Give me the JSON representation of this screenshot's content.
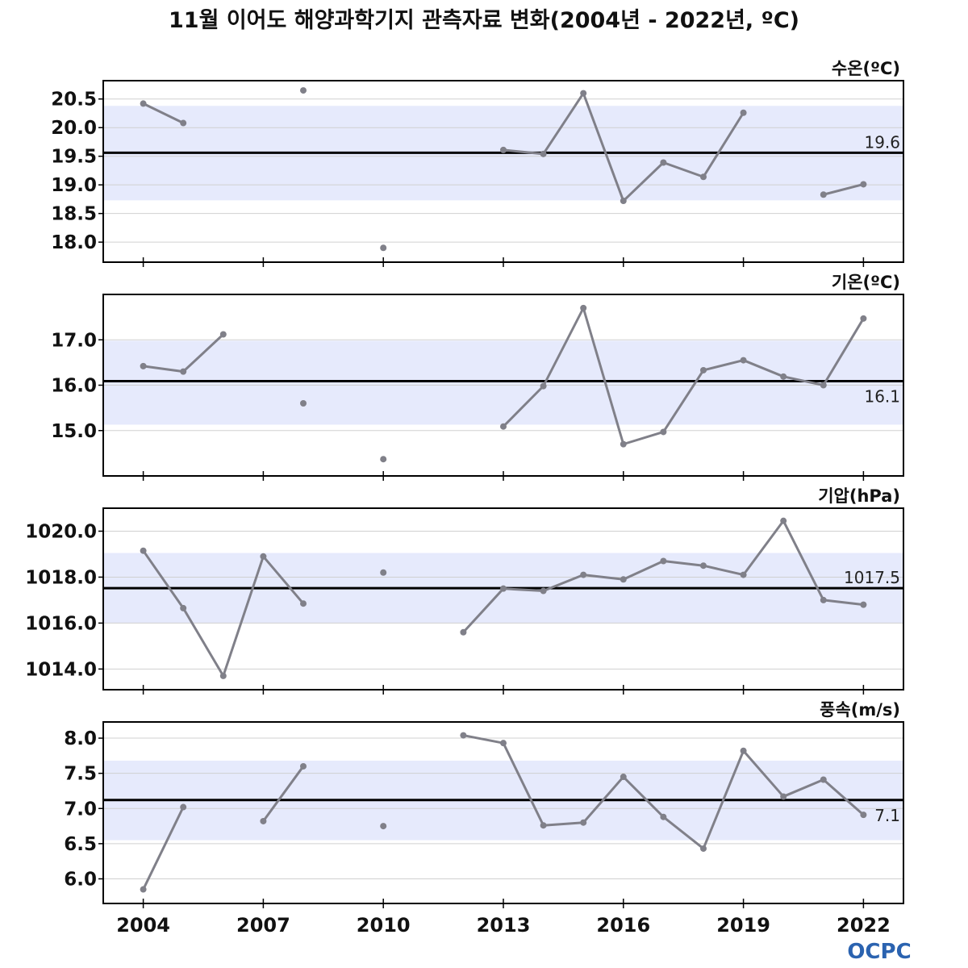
{
  "title": "11월 이어도 해양과학기지 관측자료 변화(2004년 - 2022년, ºC)",
  "logo": "OCPC",
  "colors": {
    "line": "#808089",
    "band": "#e6eafc",
    "mean_line": "#000000",
    "grid": "#d0d0d0",
    "frame": "#000000",
    "logo": "#2b63b0"
  },
  "chart_data": [
    {
      "type": "line",
      "label": "수온(ºC)",
      "x": [
        2004,
        2005,
        2006,
        2007,
        2008,
        2009,
        2010,
        2011,
        2012,
        2013,
        2014,
        2015,
        2016,
        2017,
        2018,
        2019,
        2020,
        2021,
        2022
      ],
      "values": [
        20.42,
        20.08,
        null,
        null,
        20.65,
        null,
        17.9,
        null,
        null,
        19.61,
        19.54,
        20.6,
        18.72,
        19.39,
        19.14,
        20.26,
        null,
        18.83,
        19.01
      ],
      "mean": 19.56,
      "mean_label": "19.6",
      "band": [
        18.73,
        20.38
      ],
      "ylim": [
        17.65,
        20.82
      ],
      "yticks": [
        18.0,
        18.5,
        19.0,
        19.5,
        20.0,
        20.5
      ],
      "ytick_labels": [
        "18.0",
        "18.5",
        "19.0",
        "19.5",
        "20.0",
        "20.5"
      ],
      "mean_label_pos": "above"
    },
    {
      "type": "line",
      "label": "기온(ºC)",
      "x": [
        2004,
        2005,
        2006,
        2007,
        2008,
        2009,
        2010,
        2011,
        2012,
        2013,
        2014,
        2015,
        2016,
        2017,
        2018,
        2019,
        2020,
        2021,
        2022
      ],
      "values": [
        16.42,
        16.3,
        17.12,
        null,
        15.6,
        null,
        14.37,
        null,
        null,
        15.09,
        15.98,
        17.7,
        14.7,
        14.97,
        16.33,
        16.55,
        16.19,
        16.0,
        17.47
      ],
      "mean": 16.09,
      "mean_label": "16.1",
      "band": [
        15.13,
        16.98
      ],
      "ylim": [
        14.0,
        18.0
      ],
      "yticks": [
        15.0,
        16.0,
        17.0
      ],
      "ytick_labels": [
        "15.0",
        "16.0",
        "17.0"
      ],
      "mean_label_pos": "below"
    },
    {
      "type": "line",
      "label": "기압(hPa)",
      "x": [
        2004,
        2005,
        2006,
        2007,
        2008,
        2009,
        2010,
        2011,
        2012,
        2013,
        2014,
        2015,
        2016,
        2017,
        2018,
        2019,
        2020,
        2021,
        2022
      ],
      "values": [
        1019.15,
        1016.65,
        1013.7,
        1018.9,
        1016.85,
        null,
        1018.2,
        null,
        1015.6,
        1017.5,
        1017.4,
        1018.1,
        1017.9,
        1018.7,
        1018.5,
        1018.1,
        1020.45,
        1017.0,
        1016.8
      ],
      "mean": 1017.52,
      "mean_label": "1017.5",
      "band": [
        1016.0,
        1019.05
      ],
      "ylim": [
        1013.1,
        1021.0
      ],
      "yticks": [
        1014.0,
        1016.0,
        1018.0,
        1020.0
      ],
      "ytick_labels": [
        "1014.0",
        "1016.0",
        "1018.0",
        "1020.0"
      ],
      "mean_label_pos": "above"
    },
    {
      "type": "line",
      "label": "풍속(m/s)",
      "x": [
        2004,
        2005,
        2006,
        2007,
        2008,
        2009,
        2010,
        2011,
        2012,
        2013,
        2014,
        2015,
        2016,
        2017,
        2018,
        2019,
        2020,
        2021,
        2022
      ],
      "values": [
        5.85,
        7.02,
        null,
        6.82,
        7.6,
        null,
        6.75,
        null,
        8.04,
        7.93,
        6.76,
        6.8,
        7.45,
        6.88,
        6.43,
        7.82,
        7.17,
        7.41,
        6.91
      ],
      "mean": 7.12,
      "mean_label": "7.1",
      "band": [
        6.55,
        7.68
      ],
      "ylim": [
        5.65,
        8.23
      ],
      "yticks": [
        6.0,
        6.5,
        7.0,
        7.5,
        8.0
      ],
      "ytick_labels": [
        "6.0",
        "6.5",
        "7.0",
        "7.5",
        "8.0"
      ],
      "mean_label_pos": "below"
    }
  ],
  "xaxis": {
    "range": [
      2003.0,
      2023.0
    ],
    "ticks": [
      2004,
      2007,
      2010,
      2013,
      2016,
      2019,
      2022
    ],
    "tick_labels": [
      "2004",
      "2007",
      "2010",
      "2013",
      "2016",
      "2019",
      "2022"
    ]
  }
}
